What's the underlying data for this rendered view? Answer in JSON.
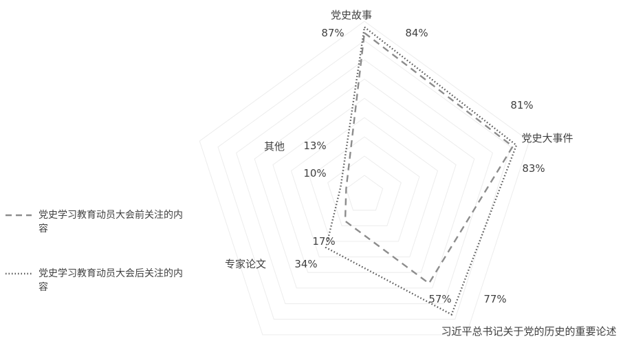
{
  "chart_data": {
    "type": "radar",
    "categories": [
      "党史故事",
      "党史大事件",
      "习近平总书记关于党的历史的重要论述",
      "专家论文",
      "其他"
    ],
    "series": [
      {
        "name": "党史学习教育动员大会前关注的内容",
        "line_style": "dashed",
        "values": [
          84,
          81,
          57,
          17,
          10
        ],
        "value_labels": [
          "84%",
          "81%",
          "57%",
          "17%",
          "10%"
        ]
      },
      {
        "name": "党史学习教育动员大会后关注的内容",
        "line_style": "dotted",
        "values": [
          87,
          83,
          77,
          34,
          13
        ],
        "value_labels": [
          "87%",
          "83%",
          "77%",
          "34%",
          "13%"
        ]
      }
    ],
    "rmax": 90,
    "grid": true,
    "grid_rings": 9,
    "legend_position": "left",
    "colors": {
      "dashed": "#8c8c8c",
      "dotted": "#5a5a5a",
      "grid": "#ececec",
      "text": "#404040"
    }
  }
}
